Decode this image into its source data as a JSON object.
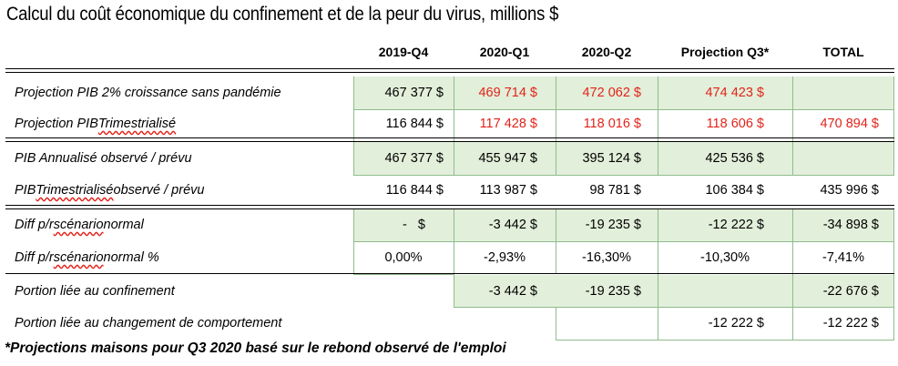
{
  "title": "Calcul du coût économique du confinement et de la peur du virus, millions $",
  "headers": [
    "2019-Q4",
    "2020-Q1",
    "2020-Q2",
    "Projection Q3*",
    "TOTAL"
  ],
  "rows": [
    {
      "label_pre": "Projection PIB 2% croissance sans pandémie",
      "label_sq": "",
      "label_post": "",
      "values": [
        "467 377 $",
        "469 714 $",
        "472 062 $",
        "474 423 $",
        ""
      ]
    },
    {
      "label_pre": "Projection PIB ",
      "label_sq": "Trimestrialisé",
      "label_post": "",
      "values": [
        "116 844 $",
        "117 428 $",
        "118 016 $",
        "118 606 $",
        "470 894 $"
      ]
    },
    {
      "label_pre": "PIB Annualisé observé / prévu",
      "label_sq": "",
      "label_post": "",
      "values": [
        "467 377 $",
        "455 947 $",
        "395 124 $",
        "425 536 $",
        ""
      ]
    },
    {
      "label_pre": "PIB ",
      "label_sq": "Trimestrialisé",
      "label_post": " observé / prévu",
      "values": [
        "116 844 $",
        "113 987 $",
        "98 781 $",
        "106 384 $",
        "435 996 $"
      ]
    },
    {
      "label_pre": "Diff p/r ",
      "label_sq": "scénario",
      "label_post": " normal",
      "values": [
        "-   $",
        "-3 442 $",
        "-19 235 $",
        "-12 222 $",
        "-34 898 $"
      ]
    },
    {
      "label_pre": "Diff p/r ",
      "label_sq": "scénario",
      "label_post": " normal %",
      "values": [
        "0,00%",
        "-2,93%",
        "-16,30%",
        "-10,30%",
        "-7,41%"
      ]
    },
    {
      "label_pre": "Portion liée au confinement",
      "label_sq": "",
      "label_post": "",
      "values": [
        "",
        "-3 442 $",
        "-19 235 $",
        "",
        "-22 676 $"
      ]
    },
    {
      "label_pre": "Portion liée au changement de comportement",
      "label_sq": "",
      "label_post": "",
      "values": [
        "",
        "",
        "",
        "-12 222 $",
        "-12 222 $"
      ]
    }
  ],
  "footnote": "*Projections maisons pour Q3 2020 basé sur le rebond observé de l'emploi",
  "colors": {
    "green_fill": "#e2efda",
    "green_border": "#8fbc8f",
    "red_text": "#e2231a"
  }
}
